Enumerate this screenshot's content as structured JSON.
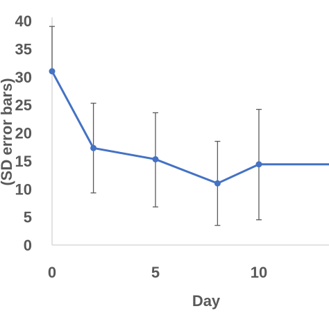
{
  "chart_data": {
    "type": "line",
    "xlabel": "Day",
    "ylabel": "(SD error bars)",
    "xlim": [
      0,
      14
    ],
    "ylim": [
      0,
      40
    ],
    "x_ticks": [
      0,
      5,
      10
    ],
    "y_ticks": [
      0,
      5,
      10,
      15,
      20,
      25,
      30,
      35,
      40
    ],
    "grid": false,
    "series": [
      {
        "x": [
          0,
          2,
          5,
          8,
          10,
          14
        ],
        "values": [
          31,
          17.3,
          15.3,
          11,
          14.4,
          14.4
        ],
        "err_low": [
          null,
          9.3,
          6.8,
          3.5,
          4.5,
          null
        ],
        "err_high": [
          39,
          25.3,
          23.6,
          18.5,
          24.2,
          null
        ],
        "color": "#4472c4"
      }
    ],
    "error_bar_color": "#595959",
    "axis_color": "#d9d9d9"
  }
}
